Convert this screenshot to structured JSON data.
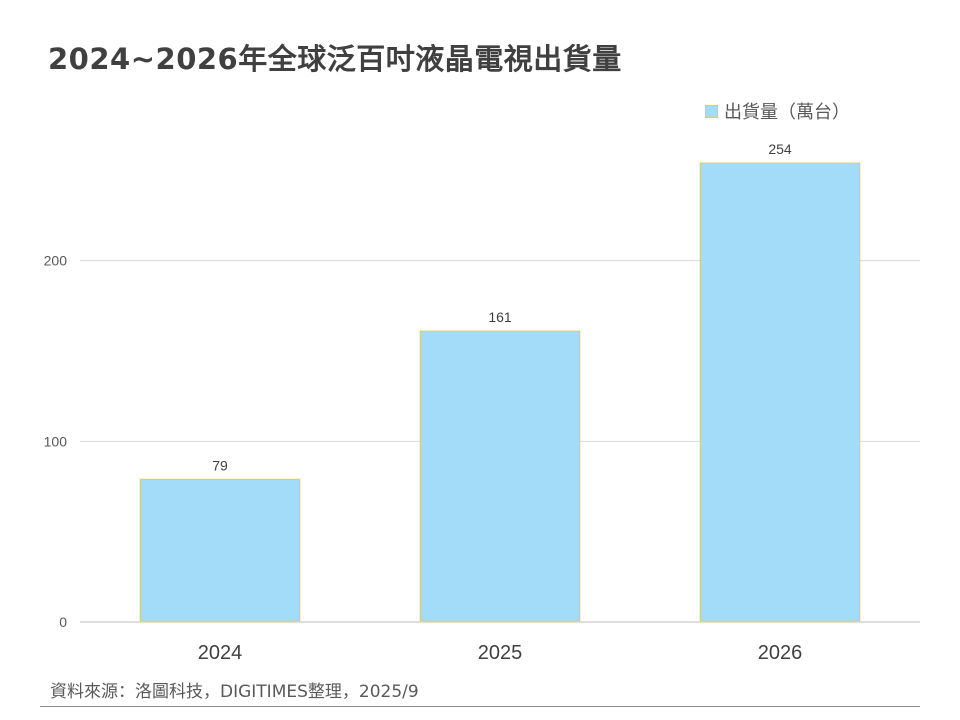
{
  "title": "2024~2026年全球泛百吋液晶電視出貨量",
  "legend": {
    "label": "出貨量（萬台）",
    "position": "top-right"
  },
  "source": "資料來源：洛圖科技，DIGITIMES整理，2025/9",
  "colors": {
    "bar_fill": "#A3DCF9",
    "bar_border": "#E4C86A",
    "gridline": "#D9D9D9",
    "axis": "#BFBFBF"
  },
  "chart_data": {
    "type": "bar",
    "title": "2024~2026年全球泛百吋液晶電視出貨量",
    "categories": [
      "2024",
      "2025",
      "2026"
    ],
    "series": [
      {
        "name": "出貨量（萬台）",
        "values": [
          79,
          161,
          254
        ],
        "data_labels": [
          "79",
          "161",
          "254"
        ]
      }
    ],
    "y_ticks": [
      "0",
      "100",
      "200"
    ],
    "ylim": [
      0,
      300
    ],
    "grid": true,
    "legend_position": "top-right"
  }
}
